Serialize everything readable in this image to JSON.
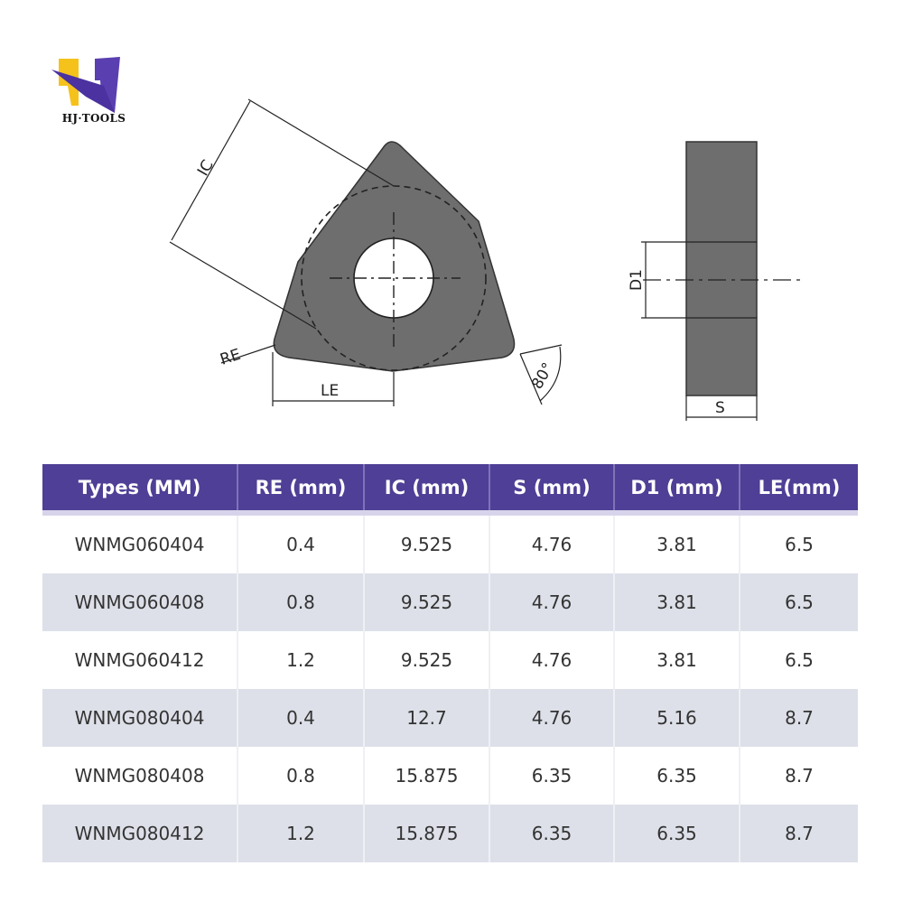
{
  "brand": {
    "name": "HJ·TOOLS",
    "colors": {
      "yellow": "#f5c21b",
      "purple": "#5a3fb0"
    }
  },
  "drawing": {
    "labels": {
      "ic": "IC",
      "re": "RE",
      "le": "LE",
      "angle": "80°",
      "d1": "D1",
      "s": "S"
    },
    "insert_color": "#6e6e6e"
  },
  "table": {
    "header_color": "#4f3f96",
    "columns": [
      "Types (MM)",
      "RE (mm)",
      "IC (mm)",
      "S (mm)",
      "D1 (mm)",
      "LE(mm)"
    ],
    "rows": [
      [
        "WNMG060404",
        "0.4",
        "9.525",
        "4.76",
        "3.81",
        "6.5"
      ],
      [
        "WNMG060408",
        "0.8",
        "9.525",
        "4.76",
        "3.81",
        "6.5"
      ],
      [
        "WNMG060412",
        "1.2",
        "9.525",
        "4.76",
        "3.81",
        "6.5"
      ],
      [
        "WNMG080404",
        "0.4",
        "12.7",
        "4.76",
        "5.16",
        "8.7"
      ],
      [
        "WNMG080408",
        "0.8",
        "15.875",
        "6.35",
        "6.35",
        "8.7"
      ],
      [
        "WNMG080412",
        "1.2",
        "15.875",
        "6.35",
        "6.35",
        "8.7"
      ]
    ]
  }
}
